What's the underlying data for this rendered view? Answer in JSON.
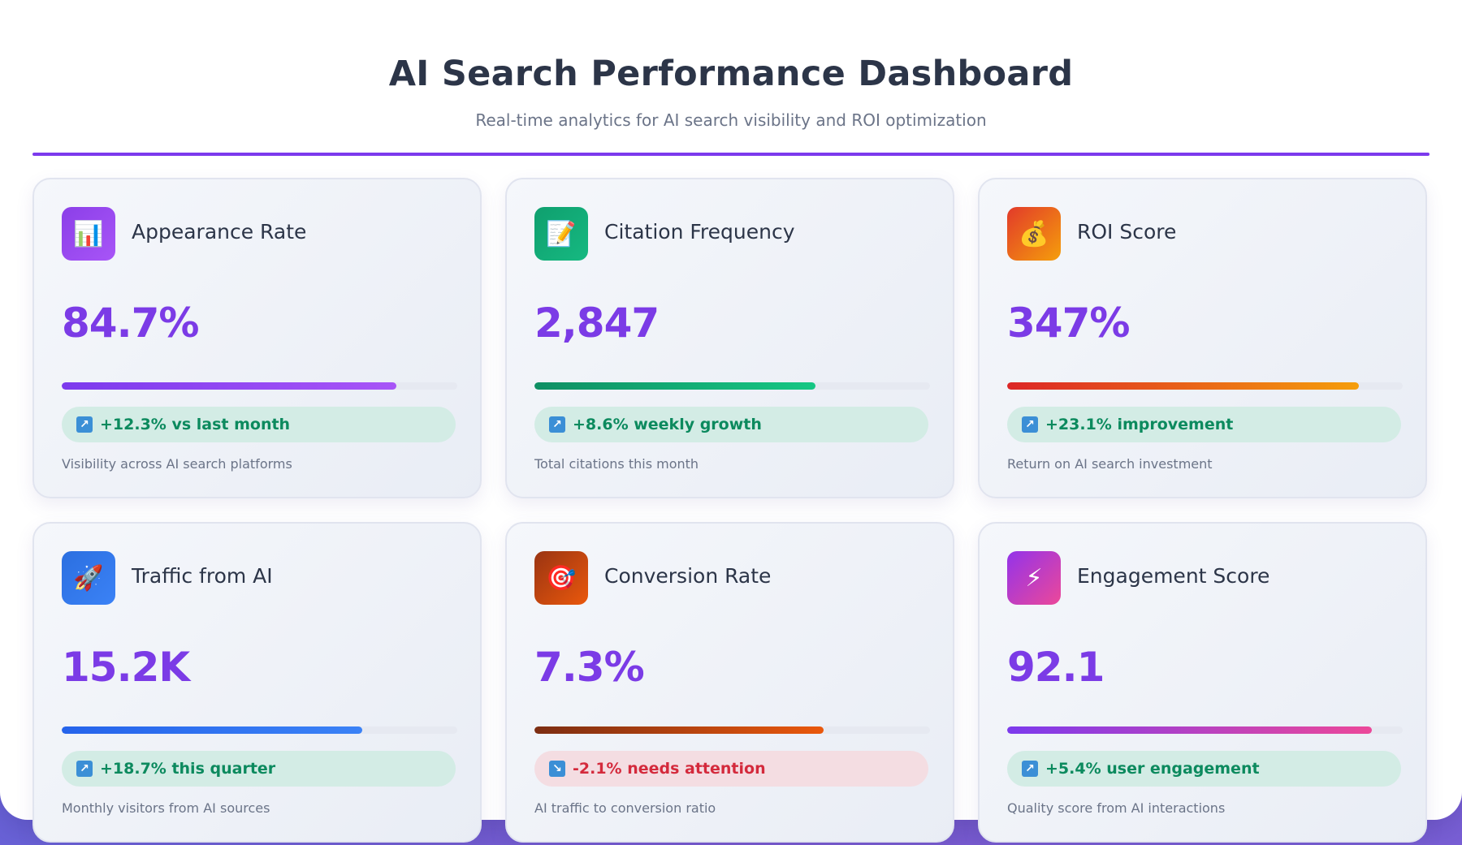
{
  "header": {
    "title": "AI Search Performance Dashboard",
    "subtitle": "Real-time analytics for AI search visibility and ROI optimization"
  },
  "colors": {
    "accent": "#7c3aed",
    "value_text": "#7b3be6",
    "positive_text": "#0c8a5e",
    "negative_text": "#d42a3c"
  },
  "cards": [
    {
      "title": "Appearance Rate",
      "icon": "bar-chart-icon",
      "icon_glyph": "📊",
      "icon_bg": "linear-gradient(135deg, #8b3fe8, #a855f7)",
      "value": "84.7%",
      "progress": 0.847,
      "bar_color": "linear-gradient(90deg, #7c3aed, #a855f7)",
      "trend": "up",
      "trend_icon": "trend-up-icon",
      "trend_text": "+12.3% vs last month",
      "description": "Visibility across AI search platforms"
    },
    {
      "title": "Citation Frequency",
      "icon": "memo-icon",
      "icon_glyph": "📝",
      "icon_bg": "linear-gradient(135deg, #0f9f6e, #16b981)",
      "value": "2,847",
      "progress": 0.71,
      "bar_color": "linear-gradient(90deg, #0f8f64, #16c784)",
      "trend": "up",
      "trend_icon": "trend-up-icon",
      "trend_text": "+8.6% weekly growth",
      "description": "Total citations this month"
    },
    {
      "title": "ROI Score",
      "icon": "money-bag-icon",
      "icon_glyph": "💰",
      "icon_bg": "linear-gradient(135deg, #e23a2a, #f59e0b)",
      "value": "347%",
      "progress": 0.89,
      "bar_color": "linear-gradient(90deg, #dc2626, #f59e0b)",
      "trend": "up",
      "trend_icon": "trend-up-icon",
      "trend_text": "+23.1% improvement",
      "description": "Return on AI search investment"
    },
    {
      "title": "Traffic from AI",
      "icon": "rocket-icon",
      "icon_glyph": "🚀",
      "icon_bg": "linear-gradient(135deg, #2b6fe0, #3b82f6)",
      "value": "15.2K",
      "progress": 0.76,
      "bar_color": "linear-gradient(90deg, #2563eb, #3b82f6)",
      "trend": "up",
      "trend_icon": "trend-up-icon",
      "trend_text": "+18.7% this quarter",
      "description": "Monthly visitors from AI sources"
    },
    {
      "title": "Conversion Rate",
      "icon": "target-icon",
      "icon_glyph": "🎯",
      "icon_bg": "linear-gradient(135deg, #9a3412, #ea580c)",
      "value": "7.3%",
      "progress": 0.73,
      "bar_color": "linear-gradient(90deg, #7c2d12, #ea580c)",
      "trend": "down",
      "trend_icon": "trend-down-icon",
      "trend_text": "-2.1% needs attention",
      "description": "AI traffic to conversion ratio"
    },
    {
      "title": "Engagement Score",
      "icon": "lightning-icon",
      "icon_glyph": "⚡",
      "icon_bg": "linear-gradient(135deg, #9333ea, #ec4899)",
      "value": "92.1",
      "progress": 0.921,
      "bar_color": "linear-gradient(90deg, #7c3aed, #ec4899)",
      "trend": "up",
      "trend_icon": "trend-up-icon",
      "trend_text": "+5.4% user engagement",
      "description": "Quality score from AI interactions"
    }
  ]
}
